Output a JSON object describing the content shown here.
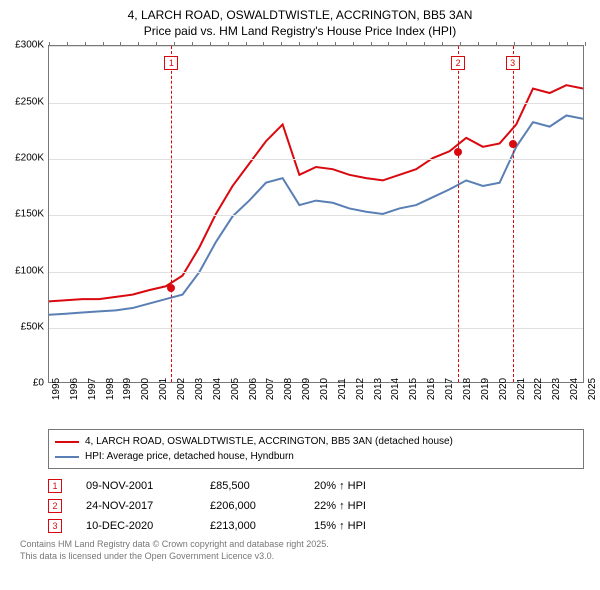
{
  "title": {
    "line1": "4, LARCH ROAD, OSWALDTWISTLE, ACCRINGTON, BB5 3AN",
    "line2": "Price paid vs. HM Land Registry's House Price Index (HPI)"
  },
  "chart": {
    "type": "line",
    "background_color": "#ffffff",
    "grid_color": "#e0e0e0",
    "axis_color": "#777777",
    "ylim": [
      0,
      300000
    ],
    "ytick_step": 50000,
    "ytick_labels": [
      "£0",
      "£50K",
      "£100K",
      "£150K",
      "£200K",
      "£250K",
      "£300K"
    ],
    "x_years": [
      1995,
      1996,
      1997,
      1998,
      1999,
      2000,
      2001,
      2002,
      2003,
      2004,
      2005,
      2006,
      2007,
      2008,
      2009,
      2010,
      2011,
      2012,
      2013,
      2014,
      2015,
      2016,
      2017,
      2018,
      2019,
      2020,
      2021,
      2022,
      2023,
      2024,
      2025
    ],
    "series": [
      {
        "name": "4, LARCH ROAD, OSWALDTWISTLE, ACCRINGTON, BB5 3AN (detached house)",
        "color": "#d9090f",
        "line_width": 2,
        "values": [
          72000,
          73000,
          74000,
          74000,
          76000,
          78000,
          82000,
          85500,
          95000,
          120000,
          150000,
          175000,
          195000,
          215000,
          230000,
          185000,
          192000,
          190000,
          185000,
          182000,
          180000,
          185000,
          190000,
          200000,
          206000,
          218000,
          210000,
          213000,
          230000,
          262000,
          258000,
          265000,
          262000
        ]
      },
      {
        "name": "HPI: Average price, detached house, Hyndburn",
        "color": "#5a7fb5",
        "line_width": 2,
        "values": [
          60000,
          61000,
          62000,
          63000,
          64000,
          66000,
          70000,
          74000,
          78000,
          98000,
          125000,
          148000,
          162000,
          178000,
          182000,
          158000,
          162000,
          160000,
          155000,
          152000,
          150000,
          155000,
          158000,
          165000,
          172000,
          180000,
          175000,
          178000,
          210000,
          232000,
          228000,
          238000,
          235000
        ]
      }
    ],
    "markers": [
      {
        "idx": "1",
        "year": 2001.85,
        "price": 85500,
        "color": "#d9090f",
        "box_top": 10
      },
      {
        "idx": "2",
        "year": 2017.9,
        "price": 206000,
        "color": "#d9090f",
        "box_top": 10
      },
      {
        "idx": "3",
        "year": 2020.95,
        "price": 213000,
        "color": "#d9090f",
        "box_top": 10
      }
    ]
  },
  "legend": {
    "rows": [
      {
        "color": "#d9090f",
        "label": "4, LARCH ROAD, OSWALDTWISTLE, ACCRINGTON, BB5 3AN (detached house)"
      },
      {
        "color": "#5a7fb5",
        "label": "HPI: Average price, detached house, Hyndburn"
      }
    ]
  },
  "sales": [
    {
      "idx": "1",
      "color": "#d9090f",
      "date": "09-NOV-2001",
      "price": "£85,500",
      "pct": "20% ↑ HPI"
    },
    {
      "idx": "2",
      "color": "#d9090f",
      "date": "24-NOV-2017",
      "price": "£206,000",
      "pct": "22% ↑ HPI"
    },
    {
      "idx": "3",
      "color": "#d9090f",
      "date": "10-DEC-2020",
      "price": "£213,000",
      "pct": "15% ↑ HPI"
    }
  ],
  "footer": {
    "line1": "Contains HM Land Registry data © Crown copyright and database right 2025.",
    "line2": "This data is licensed under the Open Government Licence v3.0."
  }
}
